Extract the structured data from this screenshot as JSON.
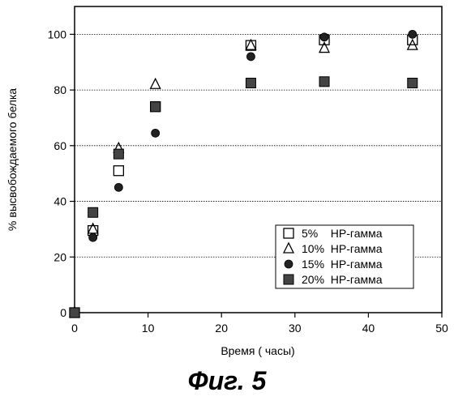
{
  "chart_data": {
    "type": "scatter",
    "xlabel": "Время  ( часы)",
    "ylabel": "% высвобождаемого белка",
    "xlim": [
      0,
      50
    ],
    "ylim": [
      0,
      110
    ],
    "xticks": [
      0,
      10,
      20,
      30,
      40,
      50
    ],
    "yticks": [
      0,
      20,
      40,
      60,
      80,
      100
    ],
    "grid": "horizontal dashed",
    "legend_position": "bottom-right",
    "series": [
      {
        "name": "5%    HP-гамма",
        "marker": "open-square",
        "x": [
          0,
          2.5,
          6,
          11,
          24,
          34,
          46
        ],
        "y": [
          0,
          29.5,
          51,
          74,
          96,
          98,
          98
        ]
      },
      {
        "name": "10%  HP-гамма",
        "marker": "open-triangle",
        "x": [
          0,
          2.5,
          6,
          11,
          24,
          34,
          46
        ],
        "y": [
          0,
          30,
          59,
          82,
          96,
          95,
          96
        ]
      },
      {
        "name": "15%  HP-гамма",
        "marker": "filled-circle",
        "x": [
          0,
          2.5,
          6,
          11,
          24,
          34,
          46
        ],
        "y": [
          0,
          27,
          45,
          64.5,
          92,
          99,
          100
        ]
      },
      {
        "name": "20%  HP-гамма",
        "marker": "filled-square",
        "x": [
          0,
          2.5,
          6,
          11,
          24,
          34,
          46
        ],
        "y": [
          0,
          36,
          57,
          74,
          82.5,
          83,
          82.5
        ]
      }
    ]
  },
  "caption": "Фиг. 5"
}
